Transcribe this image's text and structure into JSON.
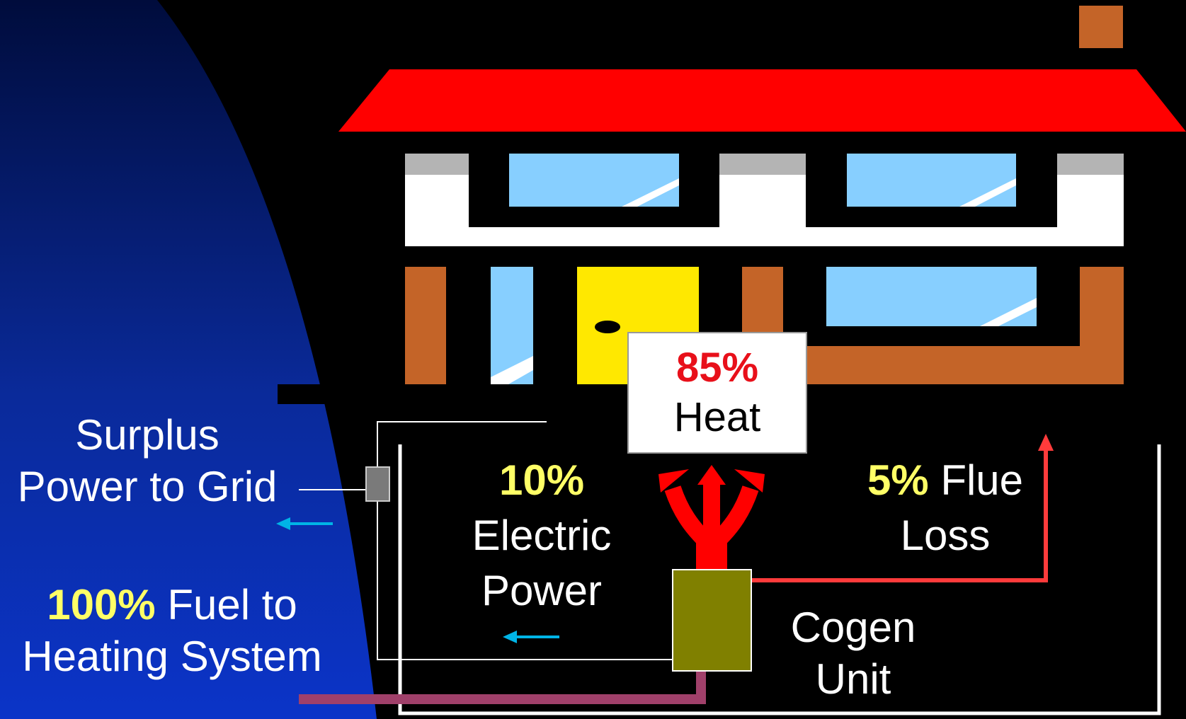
{
  "labels": {
    "heat": {
      "percent": "85%",
      "text": "Heat"
    },
    "electric": {
      "percent": "10%",
      "line1": "Electric",
      "line2": "Power"
    },
    "flue": {
      "percent": "5%",
      "line1": "Flue",
      "line2": "Loss"
    },
    "cogen": {
      "line1": "Cogen",
      "line2": "Unit"
    },
    "surplus": {
      "line1": "Surplus",
      "line2": "Power to Grid"
    },
    "fuel": {
      "percent": "100%",
      "line1": "Fuel to",
      "line2": "Heating System"
    }
  },
  "colors": {
    "roof": "#ff0000",
    "brick": "#c46428",
    "window": "#87cfff",
    "door": "#ffe800",
    "cogen_unit": "#808000",
    "flue_pipe": "#ff3b3b",
    "heat_arrows": "#ff0000",
    "fuel_pipe": "#a0406a",
    "power_arrow": "#00b4e6",
    "highlight": "#ffff66",
    "heat_percent": "#e8101a"
  }
}
